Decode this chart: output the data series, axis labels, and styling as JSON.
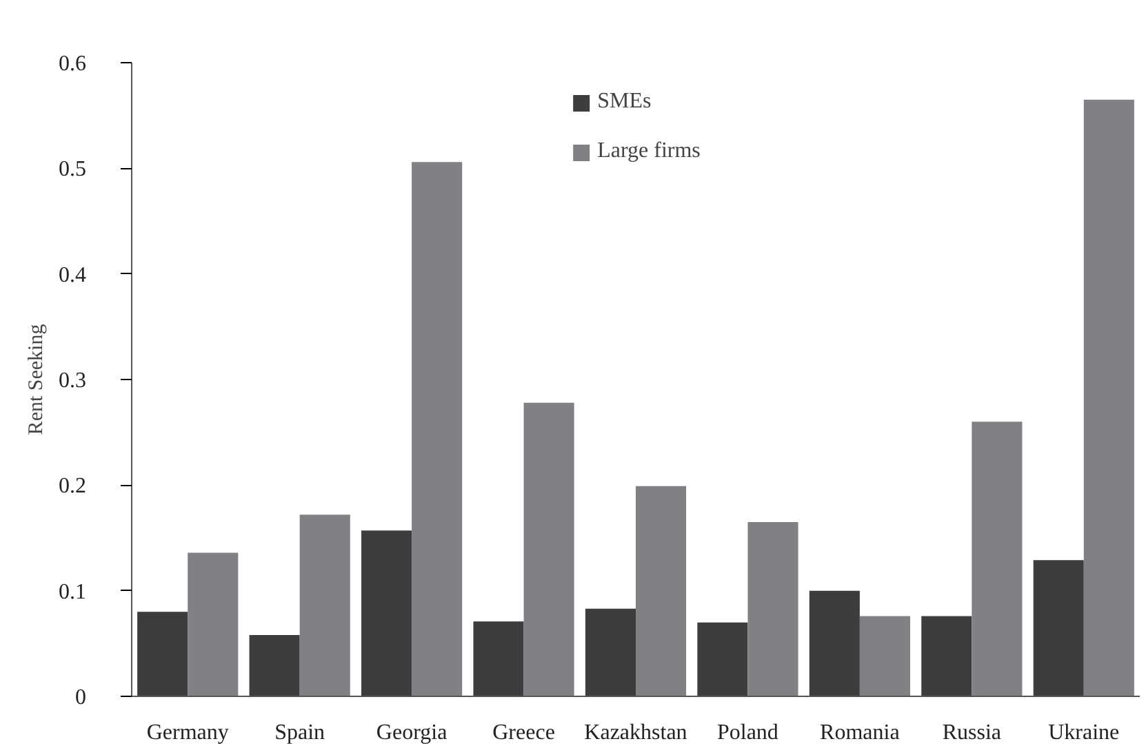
{
  "chart_data": {
    "type": "bar",
    "ylabel": "Rent Seeking",
    "categories": [
      "Germany",
      "Spain",
      "Georgia",
      "Greece",
      "Kazakhstan",
      "Poland",
      "Romania",
      "Russia",
      "Ukraine"
    ],
    "series": [
      {
        "name": "SMEs",
        "color": "#3d3d3d",
        "values": [
          0.08,
          0.058,
          0.157,
          0.071,
          0.083,
          0.07,
          0.1,
          0.076,
          0.129
        ]
      },
      {
        "name": "Large firms",
        "color": "#808184",
        "values": [
          0.136,
          0.172,
          0.506,
          0.278,
          0.199,
          0.165,
          0.076,
          0.26,
          0.565
        ]
      }
    ],
    "ylim": [
      0,
      0.6
    ],
    "yticks": [
      0,
      0.1,
      0.2,
      0.3,
      0.4,
      0.5,
      0.6
    ],
    "legend": "top",
    "grid": false
  }
}
